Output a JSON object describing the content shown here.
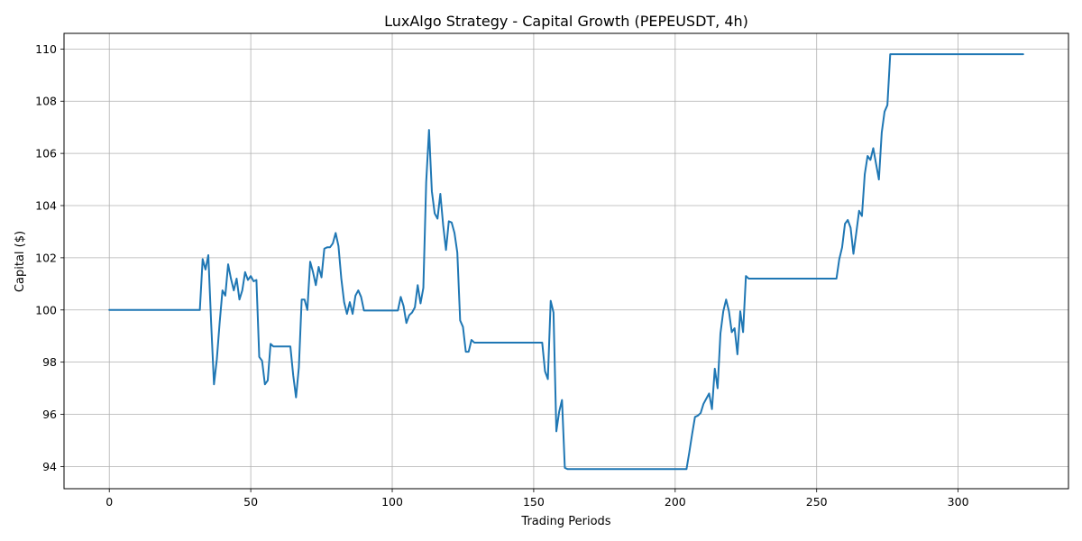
{
  "chart_data": {
    "type": "line",
    "title": "LuxAlgo Strategy - Capital Growth (PEPEUSDT, 4h)",
    "xlabel": "Trading Periods",
    "ylabel": "Capital ($)",
    "xlim": [
      -16,
      339
    ],
    "ylim": [
      93.15,
      110.6
    ],
    "xticks": [
      0,
      50,
      100,
      150,
      200,
      250,
      300
    ],
    "yticks": [
      94,
      96,
      98,
      100,
      102,
      104,
      106,
      108,
      110
    ],
    "grid": true,
    "legend": "none",
    "colors": {
      "line": "#1f77b4",
      "grid": "#b0b0b0",
      "axes": "#000000",
      "background": "#ffffff"
    },
    "series": [
      {
        "x": [
          0,
          32,
          33,
          34,
          35,
          36,
          37,
          38,
          39,
          40,
          41,
          42,
          43,
          44,
          45,
          46,
          47,
          48,
          49,
          50,
          51,
          52,
          53,
          54,
          55,
          56,
          57,
          58,
          59,
          60,
          61,
          62,
          63,
          64,
          65,
          66,
          67,
          68,
          69,
          70,
          71,
          72,
          73,
          74,
          75,
          76,
          77,
          78,
          79,
          80,
          81,
          82,
          83,
          84,
          85,
          86,
          87,
          88,
          89,
          90,
          91,
          92,
          100,
          102,
          103,
          104,
          105,
          106,
          107,
          108,
          109,
          110,
          111,
          112,
          113,
          114,
          115,
          116,
          117,
          118,
          119,
          120,
          121,
          122,
          123,
          124,
          125,
          126,
          127,
          128,
          129,
          130,
          140,
          150,
          153,
          154,
          155,
          156,
          157,
          158,
          159,
          160,
          161,
          162,
          170,
          180,
          190,
          200,
          204,
          205,
          206,
          207,
          208,
          209,
          210,
          211,
          212,
          213,
          214,
          215,
          216,
          217,
          218,
          219,
          220,
          221,
          222,
          223,
          224,
          225,
          226,
          227,
          230,
          240,
          250,
          257,
          258,
          259,
          260,
          261,
          262,
          263,
          264,
          265,
          266,
          267,
          268,
          269,
          270,
          271,
          272,
          273,
          274,
          275,
          276,
          277,
          280,
          300,
          323
        ],
        "values": [
          100.0,
          100.0,
          101.95,
          101.55,
          102.1,
          99.5,
          97.15,
          98.1,
          99.5,
          100.75,
          100.55,
          101.75,
          101.2,
          100.75,
          101.2,
          100.4,
          100.75,
          101.45,
          101.15,
          101.3,
          101.1,
          101.15,
          98.2,
          98.05,
          97.15,
          97.3,
          98.7,
          98.6,
          98.6,
          98.6,
          98.6,
          98.6,
          98.6,
          98.6,
          97.5,
          96.65,
          97.8,
          100.4,
          100.4,
          100.0,
          101.85,
          101.45,
          100.95,
          101.65,
          101.25,
          102.35,
          102.4,
          102.4,
          102.55,
          102.95,
          102.45,
          101.2,
          100.3,
          99.85,
          100.3,
          99.85,
          100.55,
          100.75,
          100.5,
          99.98,
          99.98,
          99.98,
          99.98,
          99.98,
          100.5,
          100.15,
          99.5,
          99.8,
          99.9,
          100.1,
          100.95,
          100.25,
          100.85,
          104.9,
          106.9,
          104.55,
          103.7,
          103.5,
          104.45,
          103.25,
          102.3,
          103.4,
          103.35,
          102.95,
          102.2,
          99.6,
          99.35,
          98.4,
          98.4,
          98.85,
          98.75,
          98.75,
          98.75,
          98.75,
          98.75,
          97.65,
          97.35,
          100.35,
          99.9,
          95.35,
          96.1,
          96.55,
          93.95,
          93.9,
          93.9,
          93.9,
          93.9,
          93.9,
          93.9,
          94.55,
          95.25,
          95.9,
          95.95,
          96.05,
          96.4,
          96.6,
          96.8,
          96.2,
          97.75,
          97.0,
          99.1,
          99.95,
          100.4,
          99.95,
          99.15,
          99.3,
          98.3,
          99.95,
          99.15,
          101.3,
          101.2,
          101.2,
          101.2,
          101.2,
          101.2,
          101.2,
          101.95,
          102.4,
          103.3,
          103.45,
          103.15,
          102.15,
          102.95,
          103.8,
          103.6,
          105.2,
          105.9,
          105.75,
          106.2,
          105.6,
          105.0,
          106.8,
          107.6,
          107.85,
          109.8,
          109.8,
          109.8,
          109.8,
          109.8
        ]
      }
    ]
  }
}
